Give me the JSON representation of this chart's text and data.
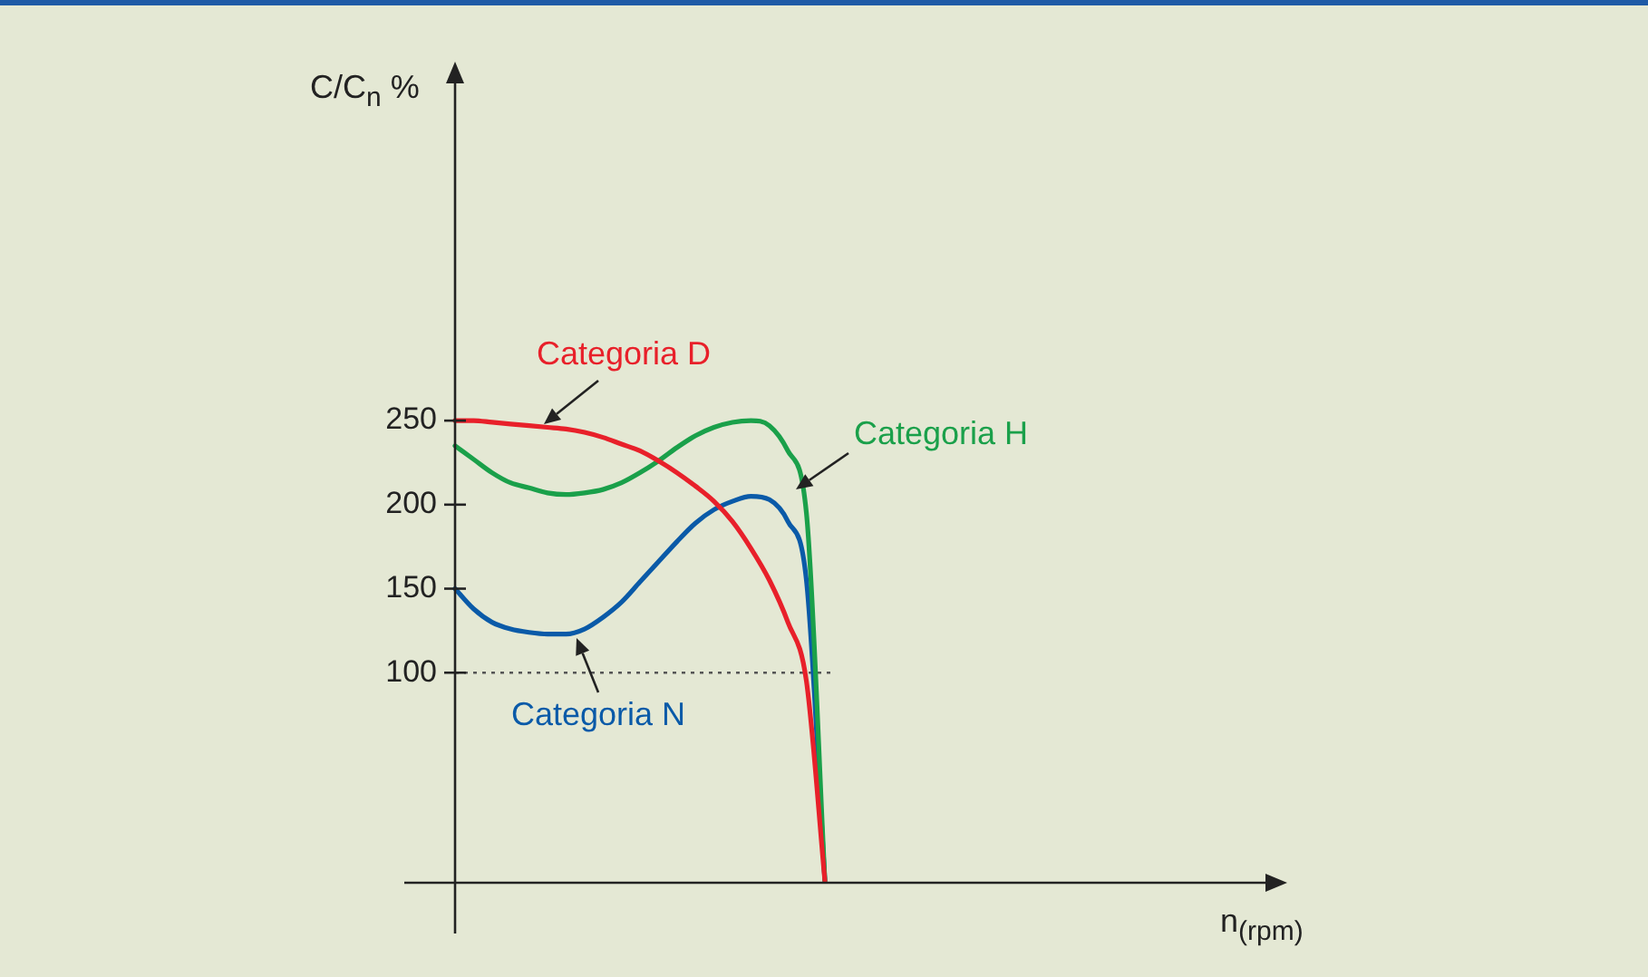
{
  "chart_data": {
    "type": "line",
    "ylabel": "C/C$_{n}$ %",
    "annotations": [
      "n$_{(rpm)}$"
    ],
    "categories": [
      null,
      null,
      null,
      null,
      null,
      null,
      null,
      null,
      null,
      null,
      null,
      null,
      null,
      null,
      null,
      null,
      null,
      null,
      null,
      null,
      null
    ],
    "series": [
      {
        "name": "Categoria D",
        "color": "#e8202a",
        "values": [
          250,
          250,
          249,
          248,
          247,
          246,
          245,
          243,
          240,
          236,
          232,
          226,
          219,
          211,
          202,
          190,
          174,
          155,
          130,
          95,
          -24
        ]
      },
      {
        "name": "Categoria H",
        "color": "#1aa04a",
        "values": [
          235,
          227,
          219,
          213,
          210,
          207,
          206,
          207,
          209,
          213,
          219,
          226,
          234,
          241,
          246,
          249,
          250,
          247,
          232,
          195,
          -24
        ]
      },
      {
        "name": "Categoria N",
        "color": "#0a5aa8",
        "values": [
          150,
          138,
          130,
          126,
          124,
          123,
          123,
          126,
          133,
          142,
          154,
          166,
          178,
          189,
          197,
          202,
          205,
          203,
          190,
          155,
          -24
        ]
      }
    ],
    "ylim": [
      -25,
      455
    ],
    "yticks": [
      100,
      150,
      200,
      250
    ],
    "ref_lines": [
      {
        "axis": "y",
        "value": 100,
        "line_style": "dotted",
        "color": "#555555"
      }
    ],
    "grid": false,
    "legend": false,
    "marker": "none",
    "line_style": "solid"
  }
}
